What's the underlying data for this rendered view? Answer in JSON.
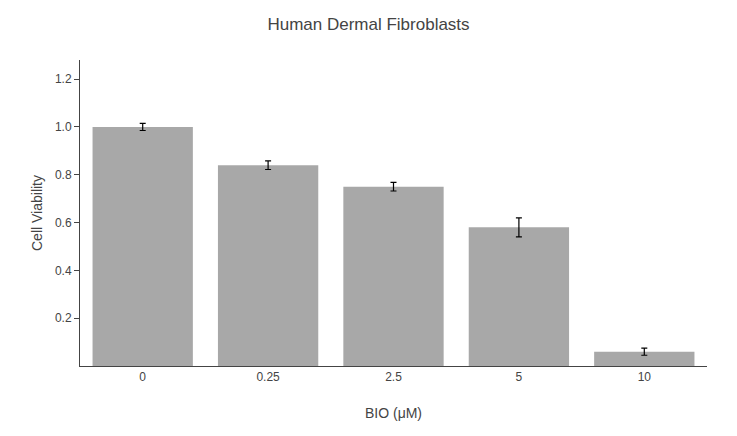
{
  "chart_data": {
    "type": "bar",
    "title": "Human Dermal Fibroblasts",
    "ylabel": "Cell Viability",
    "xlabel": "BIO (μM)",
    "categories": [
      "0",
      "0.25",
      "2.5",
      "5",
      "10"
    ],
    "values": [
      1.0,
      0.84,
      0.75,
      0.58,
      0.06
    ],
    "errors": [
      0.015,
      0.018,
      0.018,
      0.04,
      0.015
    ],
    "color": "#a8a8a8",
    "ylim": [
      0,
      1.28
    ],
    "yticks": [
      0.2,
      0.4,
      0.6,
      0.8,
      {
        "value": 1.0,
        "label": "1.0"
      },
      1.2
    ],
    "grid": false
  }
}
